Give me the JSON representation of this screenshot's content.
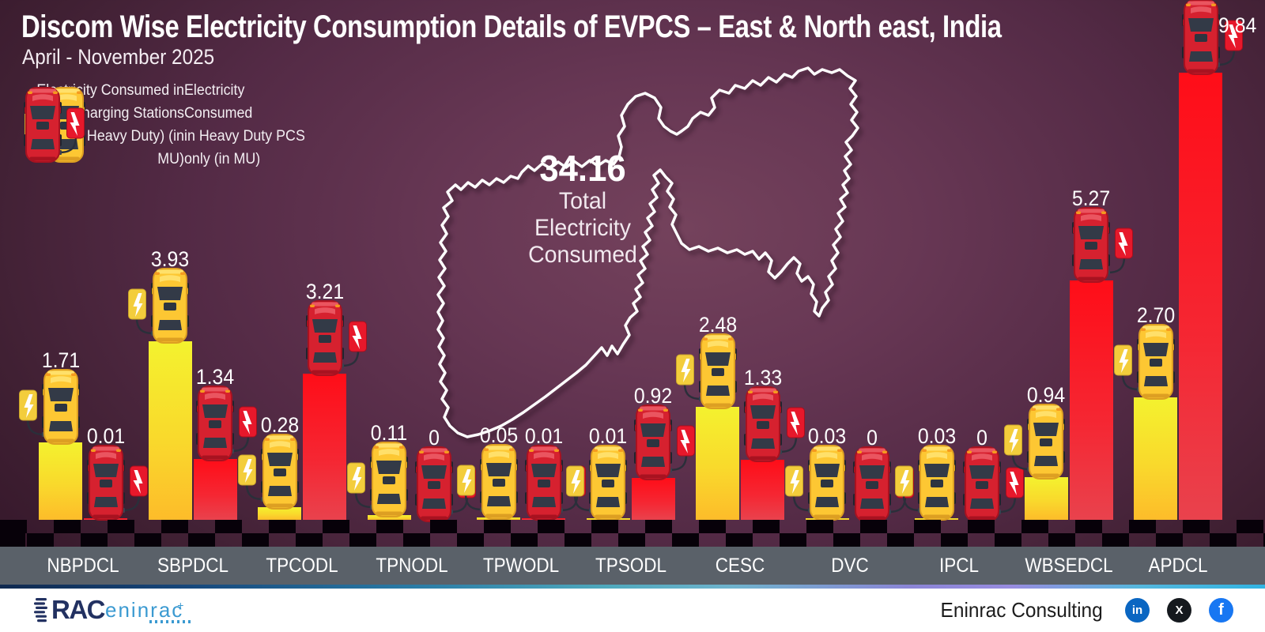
{
  "header": {
    "title": "Discom Wise Electricity Consumption Details of EVPCS – East & North east, India",
    "subtitle": "April - November 2025"
  },
  "legend": {
    "ev_label": "Electricity Consumed in\nEV Charging Stations\n(excl. Heavy Duty) (in MU)",
    "hd_label": "Electricity Consumed\nin Heavy Duty PCS\nonly (in MU)"
  },
  "total": {
    "value": "34.16",
    "label": "Total Electricity Consumed"
  },
  "chart_data": {
    "type": "bar",
    "unit": "MU",
    "title": "Discom Wise Electricity Consumption Details of EVPCS – East & North east, India",
    "subtitle": "April - November 2025",
    "categories": [
      "NBPDCL",
      "SBPDCL",
      "TPCODL",
      "TPNODL",
      "TPWODL",
      "TPSODL",
      "CESC",
      "DVC",
      "IPCL",
      "WBSEDCL",
      "APDCL"
    ],
    "series": [
      {
        "name": "Electricity Consumed in EV Charging Stations (excl. Heavy Duty) (in MU)",
        "color": "#f4f22e",
        "values": [
          1.71,
          3.93,
          0.28,
          0.11,
          0.05,
          0.01,
          2.48,
          0.03,
          0.03,
          0.94,
          2.7
        ],
        "labels": [
          "1.71",
          "3.93",
          "0.28",
          "0.11",
          "0.05",
          "0.01",
          "2.48",
          "0.03",
          "0.03",
          "0.94",
          "2.70"
        ]
      },
      {
        "name": "Electricity Consumed in Heavy Duty PCS only (in MU)",
        "color": "#ff0d18",
        "values": [
          0.01,
          1.34,
          3.21,
          0,
          0.01,
          0.92,
          1.33,
          0,
          0,
          5.27,
          9.84
        ],
        "labels": [
          "0.01",
          "1.34",
          "3.21",
          "0",
          "0.01",
          "0.92",
          "1.33",
          "0",
          "0",
          "5.27",
          "9.84"
        ]
      }
    ],
    "total_value": 34.16,
    "total_label": "Total Electricity Consumed",
    "ylim": [
      0,
      10
    ],
    "grid": false,
    "legend_position": "top-left"
  },
  "footer": {
    "logo_rac": "RAC",
    "logo_eninrac": "eninrac",
    "company": "Eninrac Consulting",
    "social": [
      {
        "name": "linkedin",
        "glyph": "in",
        "color": "#0a66c2"
      },
      {
        "name": "x",
        "glyph": "X",
        "color": "#15191e"
      },
      {
        "name": "facebook",
        "glyph": "f",
        "color": "#1877f2"
      }
    ]
  }
}
